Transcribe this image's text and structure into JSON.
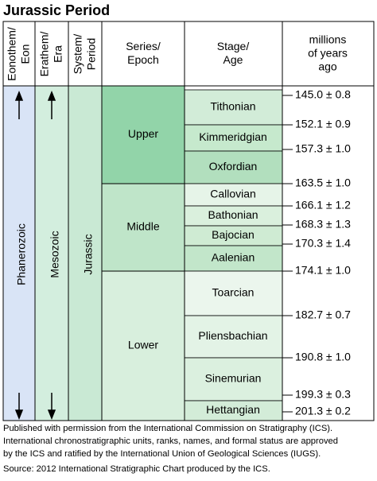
{
  "title": "Jurassic Period",
  "headers": [
    [
      "Eonothem/",
      "Eon"
    ],
    [
      "Erathem/",
      "Era"
    ],
    [
      "System/",
      "Period"
    ],
    [
      "Series/",
      "Epoch"
    ],
    [
      "Stage/",
      "Age"
    ],
    [
      "millions",
      "of years",
      "ago"
    ]
  ],
  "eon": "Phanerozoic",
  "era": "Mesozoic",
  "system": "Jurassic",
  "series": [
    "Upper",
    "Middle",
    "Lower"
  ],
  "stages": [
    "Tithonian",
    "Kimmeridgian",
    "Oxfordian",
    "Callovian",
    "Bathonian",
    "Bajocian",
    "Aalenian",
    "Toarcian",
    "Pliensbachian",
    "Sinemurian",
    "Hettangian"
  ],
  "ages": [
    "145.0 ± 0.8",
    "152.1 ± 0.9",
    "157.3 ± 1.0",
    "163.5 ± 1.0",
    "166.1 ± 1.2",
    "168.3 ± 1.3",
    "170.3 ± 1.4",
    "174.1 ± 1.0",
    "182.7 ± 0.7",
    "190.8 ± 1.0",
    "199.3 ± 0.3",
    "201.3 ± 0.2"
  ],
  "footer": [
    "Published with permission from the International Commission on Stratigraphy (ICS).",
    "International chronostratigraphic units, ranks, names, and formal status are approved",
    "by the ICS and ratified by the International Union of Geological Sciences (IUGS).",
    "Source: 2012 International Stratigraphic Chart produced by the ICS."
  ]
}
